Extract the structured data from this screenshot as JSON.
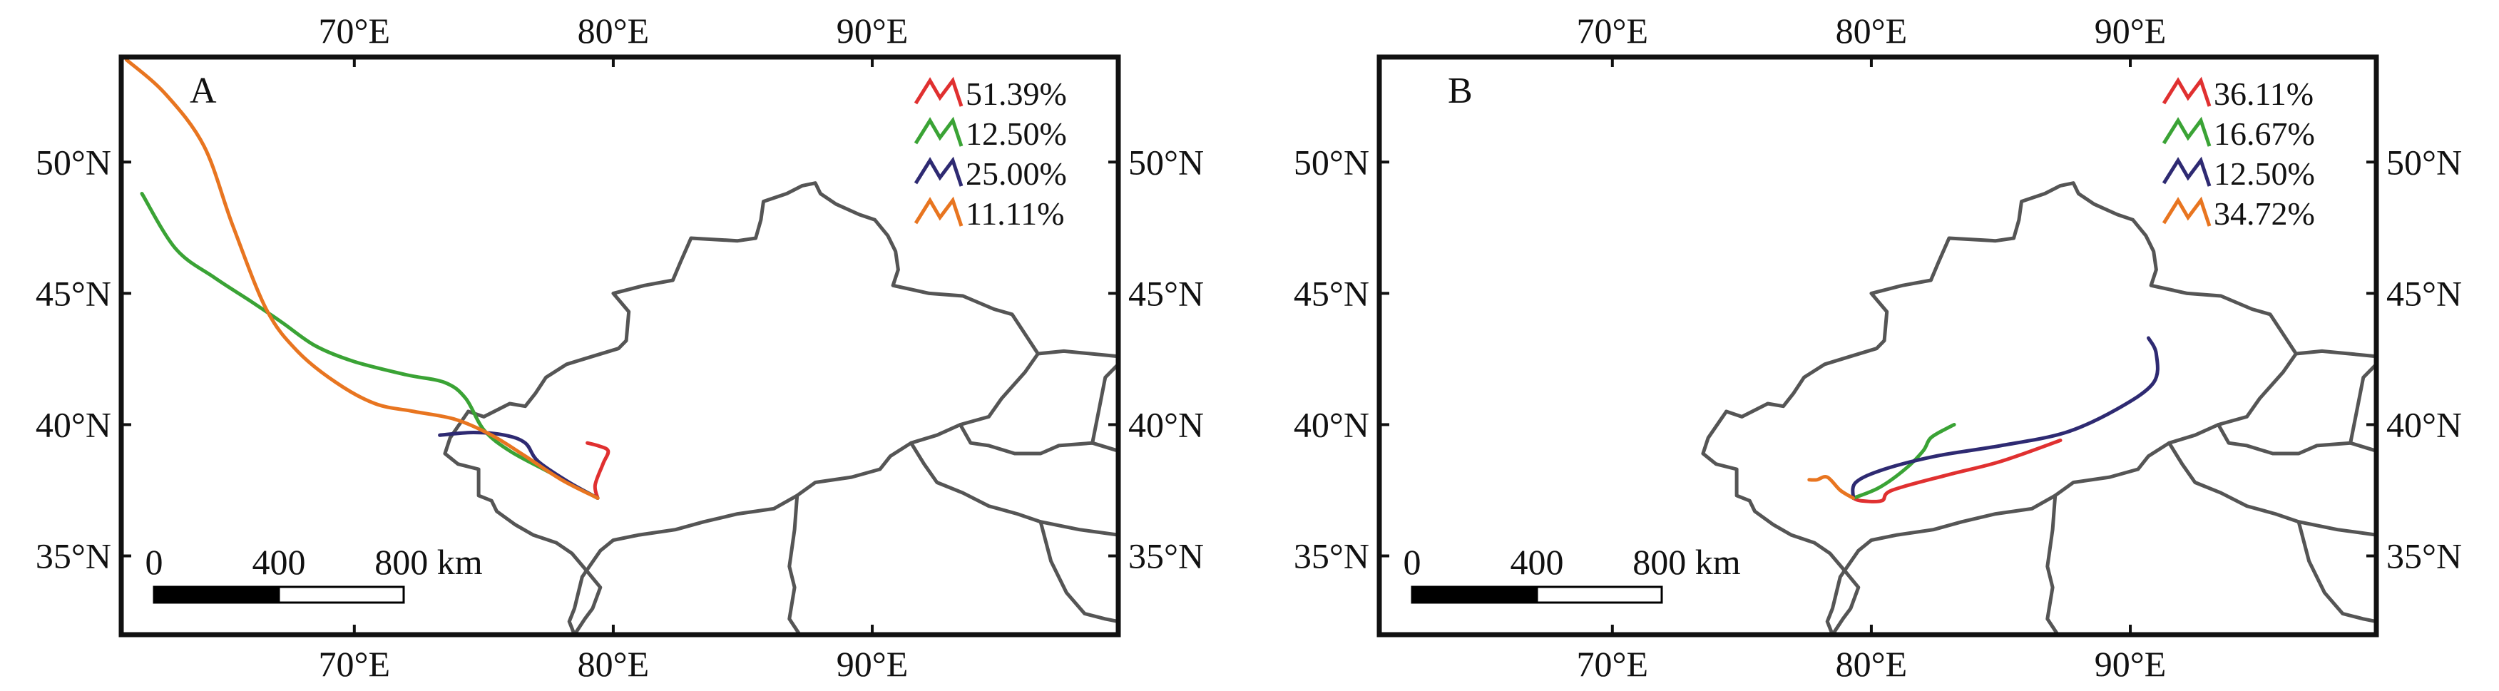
{
  "panels": [
    {
      "label": "A",
      "legend": [
        {
          "color": "#e03030",
          "text": "51.39%"
        },
        {
          "color": "#3aa335",
          "text": "12.50%"
        },
        {
          "color": "#2e2a72",
          "text": "25.00%"
        },
        {
          "color": "#e87520",
          "text": "11.11%"
        }
      ],
      "trajectories": [
        {
          "color": "#e03030",
          "points": [
            [
              79.4,
              37.2
            ],
            [
              79.3,
              37.7
            ],
            [
              79.6,
              38.5
            ],
            [
              79.8,
              39.0
            ],
            [
              79.4,
              39.2
            ],
            [
              79.0,
              39.3
            ]
          ]
        },
        {
          "color": "#3aa335",
          "points": [
            [
              79.4,
              37.2
            ],
            [
              77.5,
              38.2
            ],
            [
              76.0,
              39.0
            ],
            [
              75.0,
              39.8
            ],
            [
              74.3,
              41.0
            ],
            [
              73.5,
              41.6
            ],
            [
              72.0,
              41.9
            ],
            [
              70.0,
              42.4
            ],
            [
              68.5,
              43.0
            ],
            [
              67.2,
              43.9
            ],
            [
              66.0,
              44.7
            ],
            [
              64.6,
              45.6
            ],
            [
              63.1,
              46.7
            ],
            [
              61.8,
              48.8
            ]
          ]
        },
        {
          "color": "#2e2a72",
          "points": [
            [
              79.4,
              37.2
            ],
            [
              78.3,
              37.8
            ],
            [
              77.1,
              38.6
            ],
            [
              76.6,
              39.3
            ],
            [
              75.8,
              39.6
            ],
            [
              74.6,
              39.7
            ],
            [
              73.3,
              39.6
            ]
          ]
        },
        {
          "color": "#e87520",
          "points": [
            [
              79.4,
              37.2
            ],
            [
              78.0,
              37.9
            ],
            [
              76.6,
              38.8
            ],
            [
              75.3,
              39.6
            ],
            [
              73.9,
              40.2
            ],
            [
              72.3,
              40.5
            ],
            [
              70.8,
              40.8
            ],
            [
              69.3,
              41.6
            ],
            [
              67.8,
              42.8
            ],
            [
              66.6,
              44.4
            ],
            [
              65.3,
              47.6
            ],
            [
              64.2,
              50.6
            ],
            [
              62.7,
              52.6
            ],
            [
              61.2,
              53.9
            ]
          ]
        }
      ],
      "scalebar": {
        "labels": [
          "0",
          "400",
          "800 km"
        ]
      }
    },
    {
      "label": "B",
      "legend": [
        {
          "color": "#e03030",
          "text": "36.11%"
        },
        {
          "color": "#3aa335",
          "text": "16.67%"
        },
        {
          "color": "#2e2a72",
          "text": "12.50%"
        },
        {
          "color": "#e87520",
          "text": "34.72%"
        }
      ],
      "trajectories": [
        {
          "color": "#e03030",
          "points": [
            [
              79.3,
              37.2
            ],
            [
              79.6,
              37.1
            ],
            [
              80.4,
              37.1
            ],
            [
              80.8,
              37.5
            ],
            [
              83.0,
              38.1
            ],
            [
              85.0,
              38.6
            ],
            [
              87.3,
              39.4
            ]
          ]
        },
        {
          "color": "#3aa335",
          "points": [
            [
              79.3,
              37.2
            ],
            [
              80.3,
              37.6
            ],
            [
              81.3,
              38.3
            ],
            [
              82.0,
              39.0
            ],
            [
              82.3,
              39.5
            ],
            [
              83.0,
              39.9
            ],
            [
              83.2,
              40.0
            ]
          ]
        },
        {
          "color": "#2e2a72",
          "points": [
            [
              79.3,
              37.2
            ],
            [
              79.4,
              37.8
            ],
            [
              80.5,
              38.3
            ],
            [
              82.5,
              38.8
            ],
            [
              85.0,
              39.2
            ],
            [
              87.5,
              39.7
            ],
            [
              89.5,
              40.6
            ],
            [
              90.9,
              41.6
            ],
            [
              91.0,
              42.7
            ],
            [
              90.7,
              43.3
            ]
          ]
        },
        {
          "color": "#e87520",
          "points": [
            [
              79.3,
              37.2
            ],
            [
              78.8,
              37.5
            ],
            [
              78.3,
              38.0
            ],
            [
              77.9,
              37.9
            ],
            [
              77.6,
              37.9
            ]
          ]
        }
      ],
      "scalebar": {
        "labels": [
          "0",
          "400",
          "800 km"
        ]
      }
    }
  ],
  "axes": {
    "lon_ticks": [
      "70°E",
      "80°E",
      "90°E"
    ],
    "lat_ticks": [
      "50°N",
      "45°N",
      "40°N",
      "35°N"
    ]
  }
}
